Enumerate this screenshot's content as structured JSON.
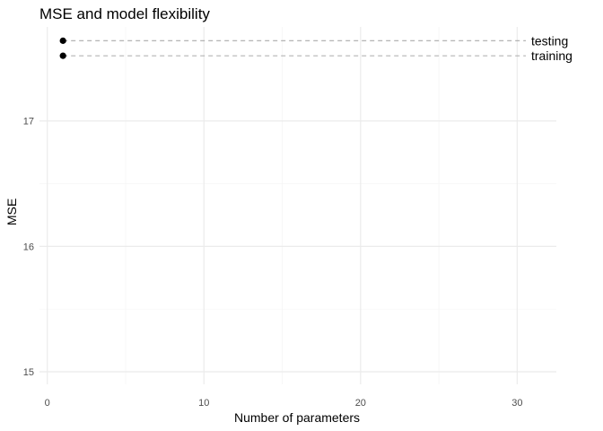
{
  "chart_data": {
    "type": "scatter",
    "title": "MSE and model flexibility",
    "xlabel": "Number of parameters",
    "ylabel": "MSE",
    "xlim": [
      -0.5,
      32.5
    ],
    "ylim": [
      14.9,
      17.75
    ],
    "x_ticks": [
      0,
      10,
      20,
      30
    ],
    "y_ticks": [
      15,
      16,
      17
    ],
    "grid": true,
    "legend": "none",
    "series": [
      {
        "name": "testing",
        "points": [
          {
            "x": 1,
            "y": 17.64
          }
        ],
        "reference_line": 17.64
      },
      {
        "name": "training",
        "points": [
          {
            "x": 1,
            "y": 17.52
          }
        ],
        "reference_line": 17.52
      }
    ],
    "colors": {
      "points": "#000000",
      "reference_line": "#aaaaaa",
      "grid_major": "#ebebeb",
      "grid_minor": "#f4f4f4"
    }
  }
}
